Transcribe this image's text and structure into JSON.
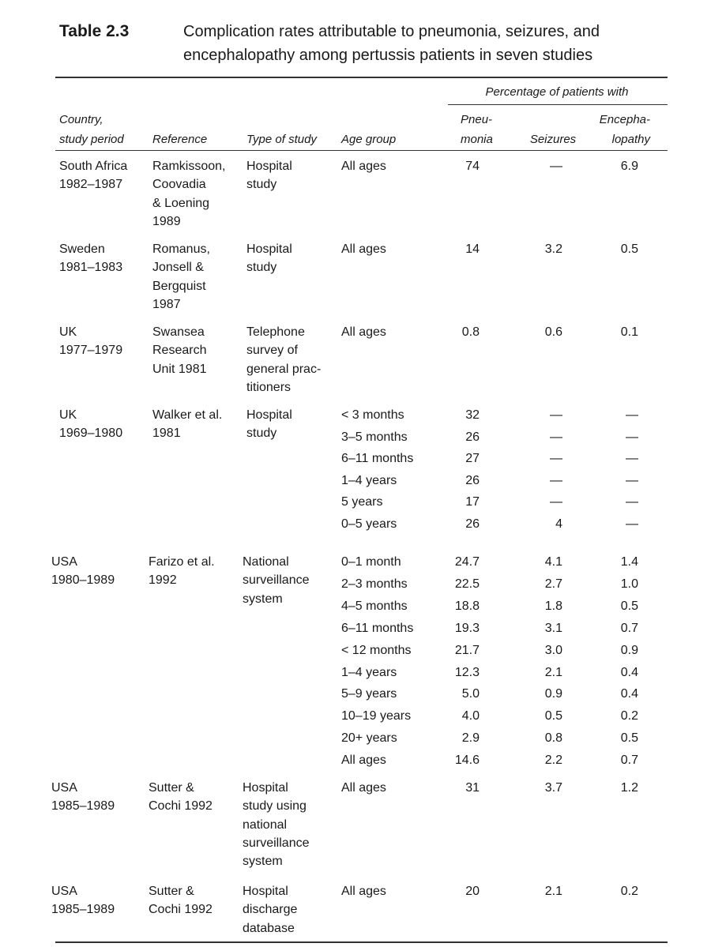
{
  "table_label": "Table 2.3",
  "title": [
    "Complication rates attributable to pneumonia, seizures, and",
    "encephalopathy among pertussis patients in seven studies"
  ],
  "spanner": "Percentage of patients with",
  "columns": [
    [
      "Country,",
      "study period"
    ],
    [
      "Reference"
    ],
    [
      "Type of study"
    ],
    [
      "Age group"
    ],
    [
      "Pneu-",
      "monia"
    ],
    [
      "Seizures"
    ],
    [
      "Encepha-",
      "lopathy"
    ]
  ],
  "studies": [
    {
      "country": [
        "South Africa",
        "1982–1987"
      ],
      "reference": [
        "Ramkissoon,",
        "Coovadia",
        "& Loening",
        "1989"
      ],
      "type": [
        "Hospital",
        "study"
      ],
      "rows": [
        [
          "All ages",
          "74",
          "—",
          "6.9"
        ]
      ]
    },
    {
      "country": [
        "Sweden",
        "1981–1983"
      ],
      "reference": [
        "Romanus,",
        "Jonsell &",
        "Bergquist",
        "1987"
      ],
      "type": [
        "Hospital",
        "study"
      ],
      "rows": [
        [
          "All ages",
          "14",
          "3.2",
          "0.5"
        ]
      ]
    },
    {
      "country": [
        "UK",
        "1977–1979"
      ],
      "reference": [
        "Swansea",
        "Research",
        "Unit 1981"
      ],
      "type": [
        "Telephone",
        "survey of",
        "general prac-",
        "titioners"
      ],
      "rows": [
        [
          "All ages",
          "0.8",
          "0.6",
          "0.1"
        ]
      ]
    },
    {
      "country": [
        "UK",
        "1969–1980"
      ],
      "reference": [
        "Walker et al.",
        "1981"
      ],
      "type": [
        "Hospital",
        "study"
      ],
      "rows": [
        [
          "< 3 months",
          "32",
          "—",
          "—"
        ],
        [
          "3–5 months",
          "26",
          "—",
          "—"
        ],
        [
          "6–11 months",
          "27",
          "—",
          "—"
        ],
        [
          "1–4 years",
          "26",
          "—",
          "—"
        ],
        [
          "5 years",
          "17",
          "—",
          "—"
        ],
        [
          "0–5 years",
          "26",
          "4",
          "—"
        ]
      ]
    },
    {
      "country": [
        "USA",
        "1980–1989"
      ],
      "reference": [
        "Farizo et al.",
        "1992"
      ],
      "type": [
        "National",
        "surveillance",
        "system"
      ],
      "rows": [
        [
          "0–1 month",
          "24.7",
          "4.1",
          "1.4"
        ],
        [
          "2–3 months",
          "22.5",
          "2.7",
          "1.0"
        ],
        [
          "4–5 months",
          "18.8",
          "1.8",
          "0.5"
        ],
        [
          "6–11 months",
          "19.3",
          "3.1",
          "0.7"
        ],
        [
          "< 12 months",
          "21.7",
          "3.0",
          "0.9"
        ],
        [
          "1–4 years",
          "12.3",
          "2.1",
          "0.4"
        ],
        [
          "5–9 years",
          "5.0",
          "0.9",
          "0.4"
        ],
        [
          "10–19 years",
          "4.0",
          "0.5",
          "0.2"
        ],
        [
          "20+ years",
          "2.9",
          "0.8",
          "0.5"
        ],
        [
          "All ages",
          "14.6",
          "2.2",
          "0.7"
        ]
      ]
    },
    {
      "country": [
        "USA",
        "1985–1989"
      ],
      "reference": [
        "Sutter &",
        "Cochi 1992"
      ],
      "type": [
        "Hospital",
        "study using",
        "national",
        "surveillance",
        "system"
      ],
      "rows": [
        [
          "All ages",
          "31",
          "3.7",
          "1.2"
        ]
      ]
    },
    {
      "country": [
        "USA",
        "1985–1989"
      ],
      "reference": [
        "Sutter &",
        "Cochi 1992"
      ],
      "type": [
        "Hospital",
        "discharge",
        "database"
      ],
      "rows": [
        [
          "All ages",
          "20",
          "2.1",
          "0.2"
        ]
      ]
    }
  ]
}
